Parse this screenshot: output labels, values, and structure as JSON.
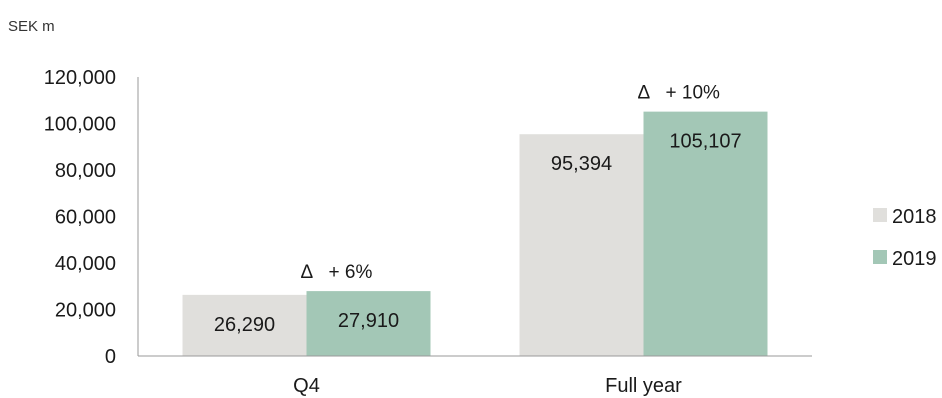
{
  "chart_data": {
    "type": "bar",
    "unit_label": "SEK m",
    "categories": [
      "Q4",
      "Full year"
    ],
    "series": [
      {
        "name": "2018",
        "color": "#e0dfdc",
        "values": [
          26290,
          95394
        ],
        "labels": [
          "26,290",
          "95,394"
        ]
      },
      {
        "name": "2019",
        "color": "#a3c7b6",
        "values": [
          27910,
          105107
        ],
        "labels": [
          "27,910",
          "105,107"
        ]
      }
    ],
    "annotations": [
      {
        "category": "Q4",
        "symbol": "Δ",
        "text": "+ 6%"
      },
      {
        "category": "Full year",
        "symbol": "Δ",
        "text": "+ 10%"
      }
    ],
    "ylim": [
      0,
      120000
    ],
    "yticks": [
      0,
      20000,
      40000,
      60000,
      80000,
      100000,
      120000
    ],
    "ytick_labels": [
      "0",
      "20,000",
      "40,000",
      "60,000",
      "80,000",
      "100,000",
      "120,000"
    ],
    "grid": false,
    "legend_position": "right"
  }
}
